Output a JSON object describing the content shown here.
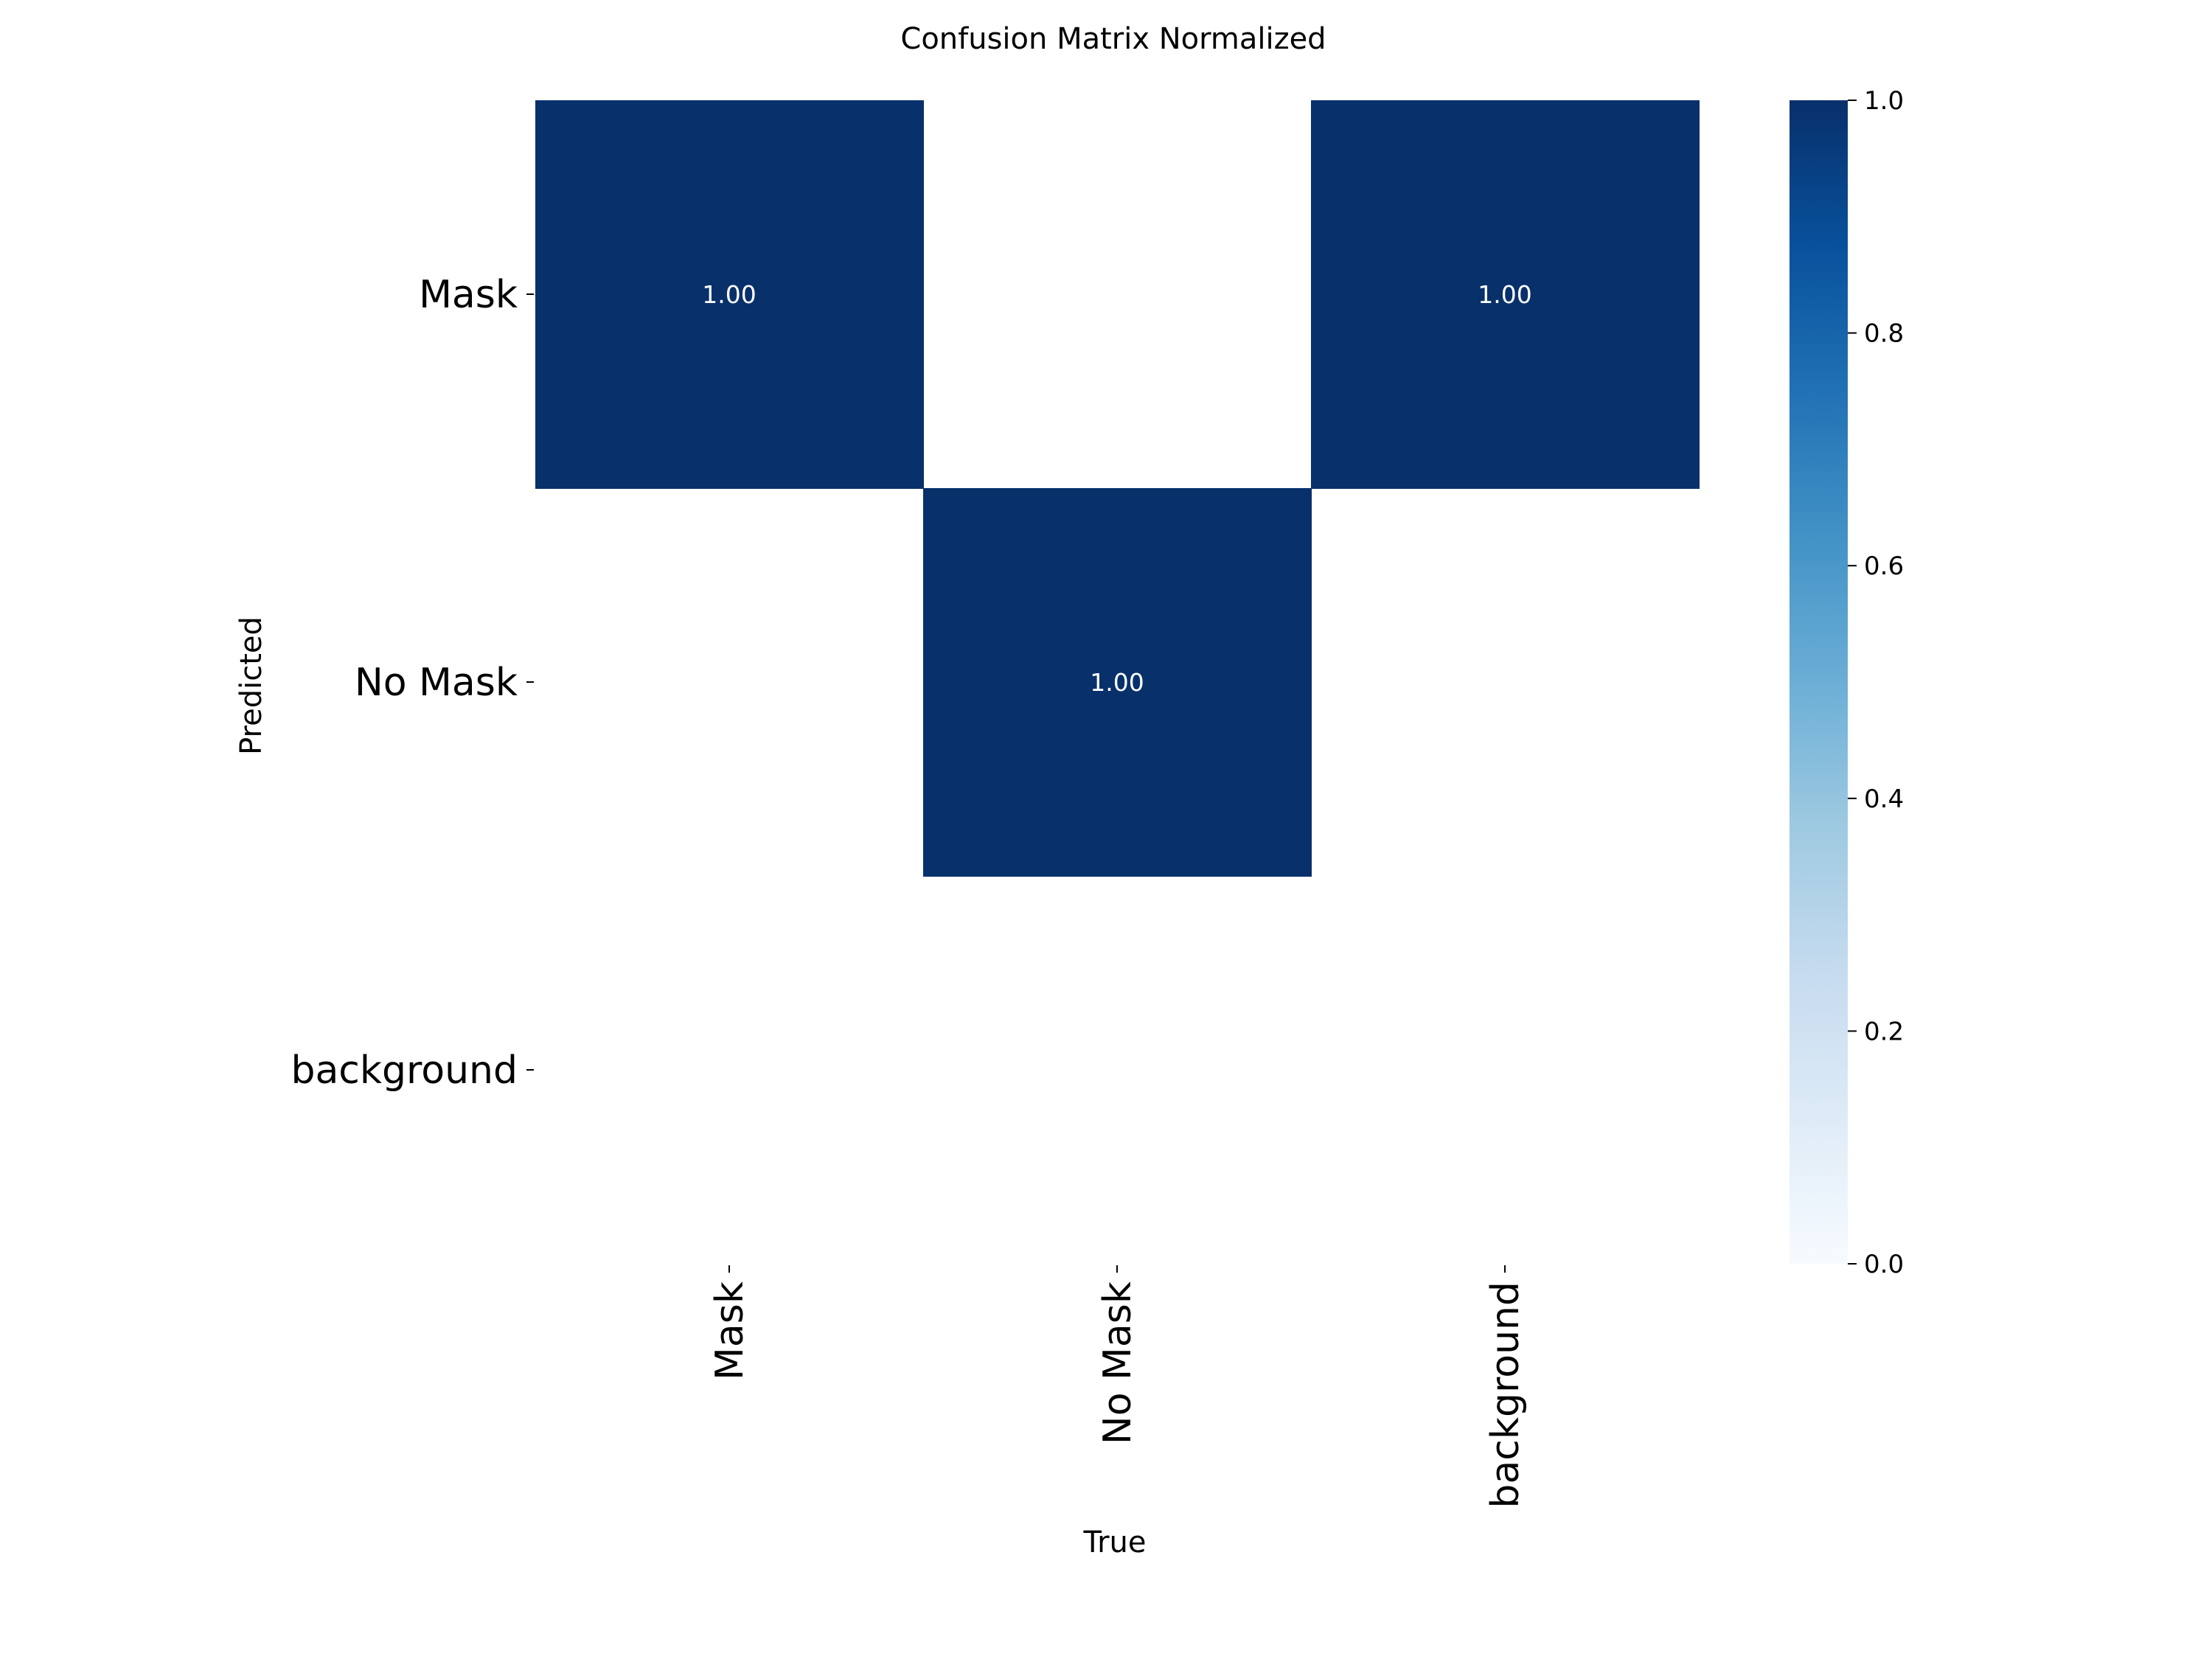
{
  "chart_data": {
    "type": "heatmap",
    "title": "Confusion Matrix Normalized",
    "xlabel": "True",
    "ylabel": "Predicted",
    "x_categories": [
      "Mask",
      "No Mask",
      "background"
    ],
    "y_categories": [
      "Mask",
      "No Mask",
      "background"
    ],
    "values": [
      [
        1.0,
        0.0,
        1.0
      ],
      [
        0.0,
        1.0,
        0.0
      ],
      [
        0.0,
        0.0,
        0.0
      ]
    ],
    "annotations": [
      [
        "1.00",
        "",
        "1.00"
      ],
      [
        "",
        "1.00",
        ""
      ],
      [
        "",
        "",
        ""
      ]
    ],
    "colormap": "Blues",
    "hide_zero_cells": true,
    "vmin": 0.0,
    "vmax": 1.0,
    "colorbar_ticks": [
      "0.0",
      "0.2",
      "0.4",
      "0.6",
      "0.8",
      "1.0"
    ],
    "grid": false,
    "legend": "colorbar-right"
  }
}
